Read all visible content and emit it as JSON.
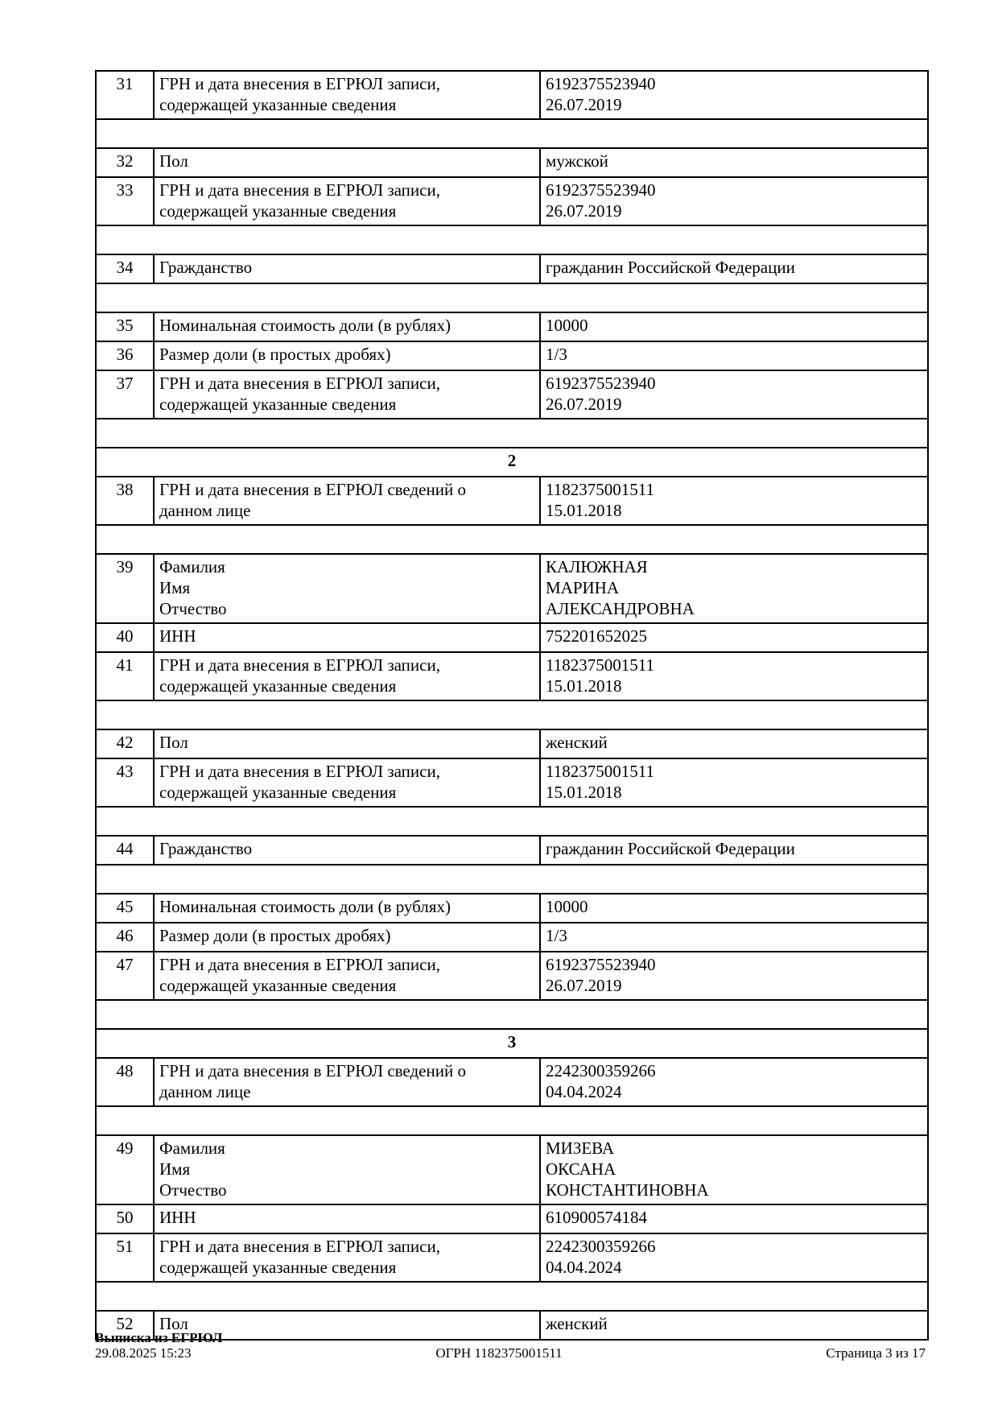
{
  "table": {
    "rows": [
      {
        "type": "data",
        "num": "31",
        "label": [
          "ГРН и дата внесения в ЕГРЮЛ записи,",
          "содержащей указанные сведения"
        ],
        "value": [
          "6192375523940",
          "26.07.2019"
        ]
      },
      {
        "type": "spacer"
      },
      {
        "type": "data",
        "num": "32",
        "label": [
          "Пол"
        ],
        "value": [
          "мужской"
        ]
      },
      {
        "type": "data",
        "num": "33",
        "label": [
          "ГРН и дата внесения в ЕГРЮЛ записи,",
          "содержащей указанные сведения"
        ],
        "value": [
          "6192375523940",
          "26.07.2019"
        ]
      },
      {
        "type": "spacer"
      },
      {
        "type": "data",
        "num": "34",
        "label": [
          "Гражданство"
        ],
        "value": [
          "гражданин Российской Федерации"
        ]
      },
      {
        "type": "spacer"
      },
      {
        "type": "data",
        "num": "35",
        "label": [
          "Номинальная стоимость доли (в рублях)"
        ],
        "value": [
          "10000"
        ]
      },
      {
        "type": "data",
        "num": "36",
        "label": [
          "Размер доли (в простых дробях)"
        ],
        "value": [
          "1/3"
        ]
      },
      {
        "type": "data",
        "num": "37",
        "label": [
          "ГРН и дата внесения в ЕГРЮЛ записи,",
          "содержащей указанные сведения"
        ],
        "value": [
          "6192375523940",
          "26.07.2019"
        ]
      },
      {
        "type": "spacer"
      },
      {
        "type": "section",
        "number": "2"
      },
      {
        "type": "data",
        "num": "38",
        "label": [
          "ГРН и дата внесения в ЕГРЮЛ сведений о",
          "данном лице"
        ],
        "value": [
          "1182375001511",
          "15.01.2018"
        ]
      },
      {
        "type": "spacer"
      },
      {
        "type": "data",
        "num": "39",
        "label": [
          "Фамилия",
          "Имя",
          "Отчество"
        ],
        "value": [
          "КАЛЮЖНАЯ",
          "МАРИНА",
          "АЛЕКСАНДРОВНА"
        ]
      },
      {
        "type": "data",
        "num": "40",
        "label": [
          "ИНН"
        ],
        "value": [
          "752201652025"
        ]
      },
      {
        "type": "data",
        "num": "41",
        "label": [
          "ГРН и дата внесения в ЕГРЮЛ записи,",
          "содержащей указанные сведения"
        ],
        "value": [
          "1182375001511",
          "15.01.2018"
        ]
      },
      {
        "type": "spacer"
      },
      {
        "type": "data",
        "num": "42",
        "label": [
          "Пол"
        ],
        "value": [
          "женский"
        ]
      },
      {
        "type": "data",
        "num": "43",
        "label": [
          "ГРН и дата внесения в ЕГРЮЛ записи,",
          "содержащей указанные сведения"
        ],
        "value": [
          "1182375001511",
          "15.01.2018"
        ]
      },
      {
        "type": "spacer"
      },
      {
        "type": "data",
        "num": "44",
        "label": [
          "Гражданство"
        ],
        "value": [
          "гражданин Российской Федерации"
        ]
      },
      {
        "type": "spacer"
      },
      {
        "type": "data",
        "num": "45",
        "label": [
          "Номинальная стоимость доли (в рублях)"
        ],
        "value": [
          "10000"
        ]
      },
      {
        "type": "data",
        "num": "46",
        "label": [
          "Размер доли (в простых дробях)"
        ],
        "value": [
          "1/3"
        ]
      },
      {
        "type": "data",
        "num": "47",
        "label": [
          "ГРН и дата внесения в ЕГРЮЛ записи,",
          "содержащей указанные сведения"
        ],
        "value": [
          "6192375523940",
          "26.07.2019"
        ]
      },
      {
        "type": "spacer"
      },
      {
        "type": "section",
        "number": "3"
      },
      {
        "type": "data",
        "num": "48",
        "label": [
          "ГРН и дата внесения в ЕГРЮЛ сведений о",
          "данном лице"
        ],
        "value": [
          "2242300359266",
          "04.04.2024"
        ]
      },
      {
        "type": "spacer"
      },
      {
        "type": "data",
        "num": "49",
        "label": [
          "Фамилия",
          "Имя",
          "Отчество"
        ],
        "value": [
          "МИЗЕВА",
          "ОКСАНА",
          "КОНСТАНТИНОВНА"
        ]
      },
      {
        "type": "data",
        "num": "50",
        "label": [
          "ИНН"
        ],
        "value": [
          "610900574184"
        ]
      },
      {
        "type": "data",
        "num": "51",
        "label": [
          "ГРН и дата внесения в ЕГРЮЛ записи,",
          "содержащей указанные сведения"
        ],
        "value": [
          "2242300359266",
          "04.04.2024"
        ]
      },
      {
        "type": "spacer"
      },
      {
        "type": "data",
        "num": "52",
        "label": [
          "Пол"
        ],
        "value": [
          "женский"
        ]
      }
    ]
  },
  "footer": {
    "doc_title": "Выписка из ЕГРЮЛ",
    "timestamp": "29.08.2025 15:23",
    "ogrn": "ОГРН 1182375001511",
    "page_info": "Страница 3 из 17"
  }
}
